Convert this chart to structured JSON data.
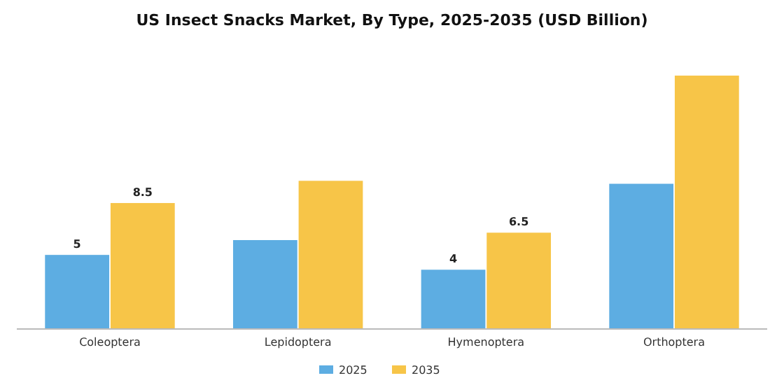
{
  "chart_data": {
    "type": "bar",
    "title": "US Insect Snacks Market, By Type, 2025-2035 (USD Billion)",
    "categories": [
      "Coleoptera",
      "Lepidoptera",
      "Hymenoptera",
      "Orthoptera"
    ],
    "series": [
      {
        "name": "2025",
        "color": "#5dade2",
        "values": [
          5,
          6.0,
          4,
          9.8
        ],
        "value_labels": [
          "5",
          null,
          "4",
          null
        ]
      },
      {
        "name": "2035",
        "color": "#f7c548",
        "values": [
          8.5,
          10.0,
          6.5,
          17.1
        ],
        "value_labels": [
          "8.5",
          null,
          "6.5",
          null
        ]
      }
    ],
    "legend": "bottom"
  }
}
